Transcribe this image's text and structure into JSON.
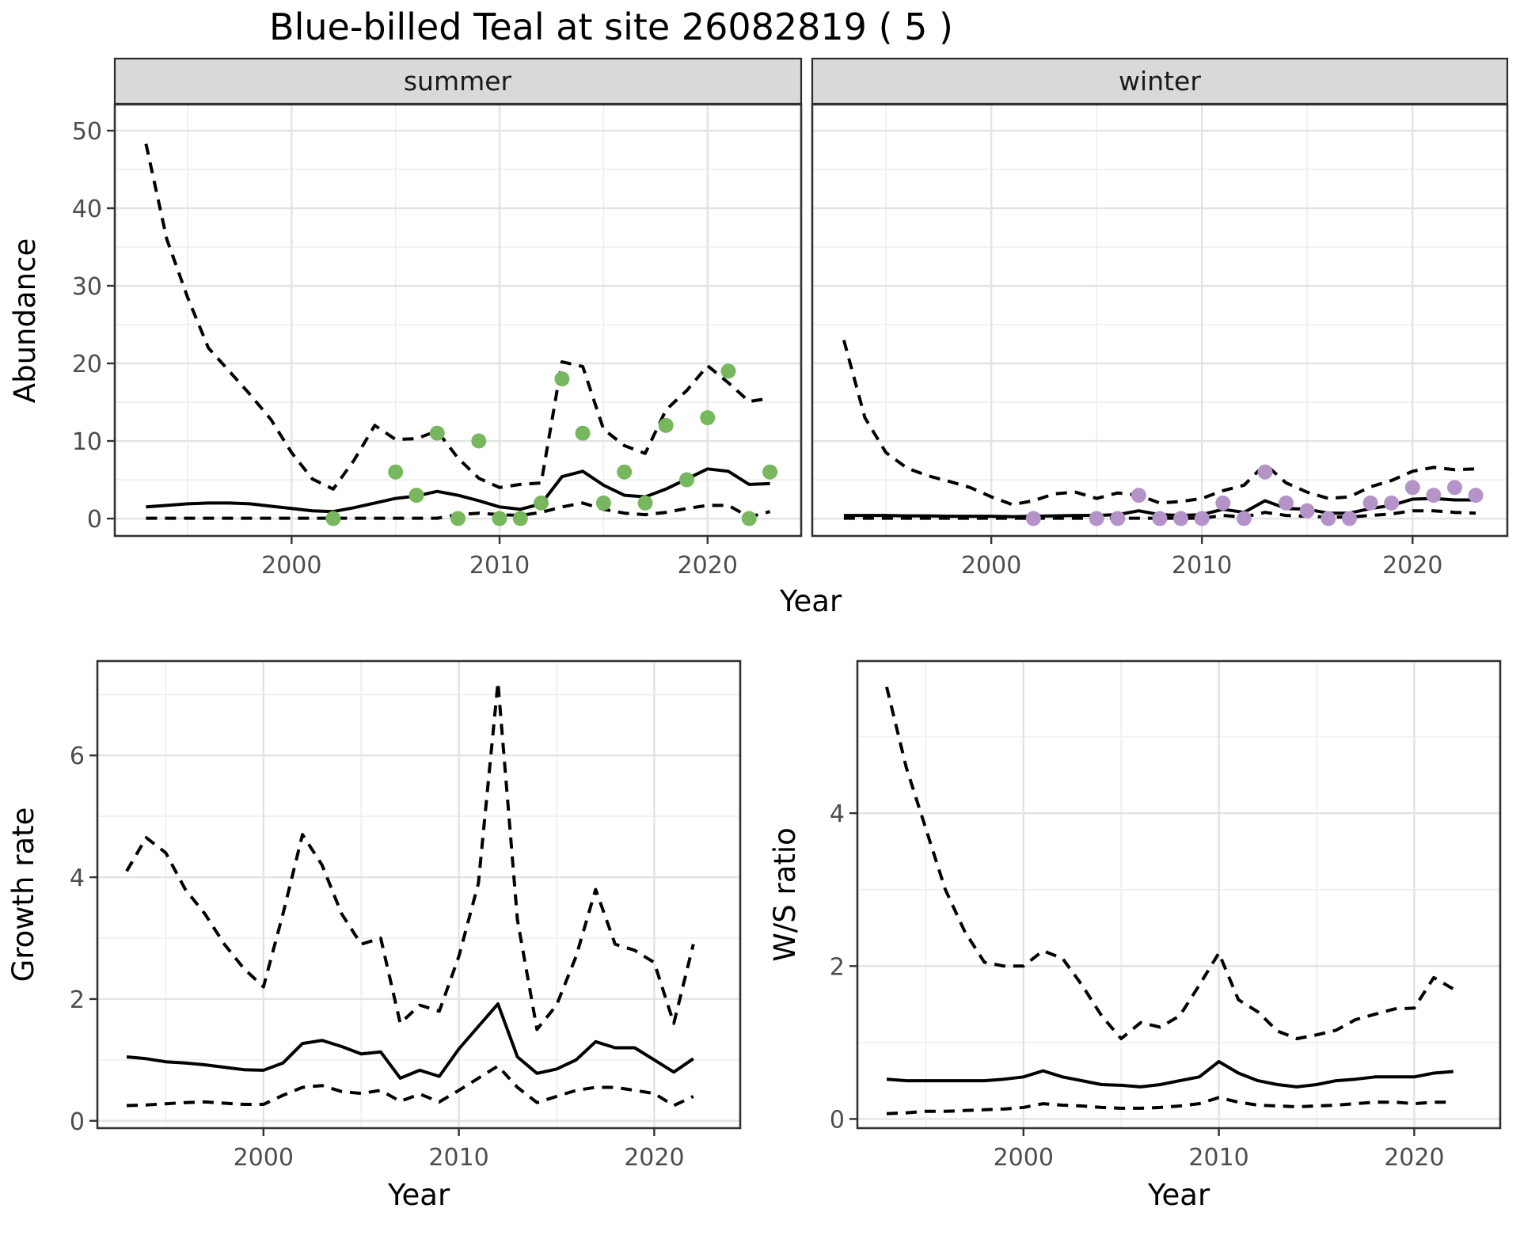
{
  "title": "Blue-billed Teal at site 26082819 ( 5 )",
  "labels": {
    "year": "Year",
    "abundance": "Abundance",
    "growth_rate": "Growth rate",
    "ws_ratio": "W/S ratio",
    "facet_summer": "summer",
    "facet_winter": "winter"
  },
  "colors": {
    "summer_point": "#77b75d",
    "winter_point": "#b493c8",
    "line": "#000000",
    "strip_bg": "#d9d9d9",
    "strip_border": "#2b2b2b",
    "panel_border": "#333333",
    "grid_major": "#e3e3e3",
    "grid_minor": "#f0f0f0",
    "tick_mark": "#333333"
  },
  "chart_data": [
    {
      "id": "summer",
      "type": "line",
      "facet_label": "summer",
      "ylabel": "Abundance",
      "xlabel": "Year",
      "xlim": [
        1991.5,
        2024.5
      ],
      "ylim": [
        -2.24,
        53.37
      ],
      "x_ticks": [
        2000,
        2010,
        2020
      ],
      "x_minor": [
        1995,
        2005,
        2015
      ],
      "y_ticks": [
        0,
        10,
        20,
        30,
        40,
        50
      ],
      "y_minor": [
        5,
        15,
        25,
        35,
        45
      ],
      "show_y_labels": true,
      "x": [
        1993,
        1994,
        1995,
        1996,
        1997,
        1998,
        1999,
        2000,
        2001,
        2002,
        2003,
        2004,
        2005,
        2006,
        2007,
        2008,
        2009,
        2010,
        2011,
        2012,
        2013,
        2014,
        2015,
        2016,
        2017,
        2018,
        2019,
        2020,
        2021,
        2022,
        2023
      ],
      "series": [
        {
          "name": "upper-ci",
          "style": "dashed",
          "values": [
            48.3,
            36,
            28.5,
            22,
            19,
            16,
            12.8,
            8.5,
            5.1,
            3.8,
            7.5,
            12,
            10.2,
            10.3,
            11.3,
            7.8,
            5.2,
            4.0,
            4.4,
            4.6,
            20.2,
            19.6,
            11.5,
            9.4,
            8.4,
            14,
            16.5,
            19.7,
            17.5,
            15.1,
            15.5
          ]
        },
        {
          "name": "median",
          "style": "solid",
          "values": [
            1.5,
            1.7,
            1.9,
            2.0,
            2.0,
            1.9,
            1.6,
            1.3,
            1.0,
            0.9,
            1.4,
            2.0,
            2.6,
            2.9,
            3.5,
            3.0,
            2.3,
            1.5,
            1.2,
            1.9,
            5.4,
            6.1,
            4.3,
            3.0,
            2.8,
            3.8,
            5.1,
            6.4,
            6.1,
            4.4,
            4.5
          ]
        },
        {
          "name": "lower-ci",
          "style": "dashed",
          "values": [
            0.05,
            0.05,
            0.05,
            0.05,
            0.05,
            0.05,
            0.05,
            0.05,
            0.05,
            0.05,
            0.05,
            0.05,
            0.05,
            0.05,
            0.05,
            0.5,
            0.7,
            0.5,
            0.4,
            0.8,
            1.5,
            2.0,
            1.2,
            0.7,
            0.5,
            0.8,
            1.3,
            1.7,
            1.7,
            0.2,
            0.9
          ]
        }
      ],
      "points": {
        "name": "observed-summer",
        "color_key": "summer_point",
        "x": [
          2002,
          2005,
          2006,
          2007,
          2008,
          2009,
          2010,
          2011,
          2012,
          2013,
          2014,
          2015,
          2016,
          2017,
          2018,
          2019,
          2020,
          2021,
          2022,
          2023
        ],
        "y": [
          0,
          6,
          3,
          11,
          0,
          10,
          0,
          0,
          2,
          18,
          11,
          2,
          6,
          2,
          12,
          5,
          13,
          19,
          0,
          6
        ]
      }
    },
    {
      "id": "winter",
      "type": "line",
      "facet_label": "winter",
      "ylabel": "Abundance",
      "xlabel": "Year",
      "xlim": [
        1991.5,
        2024.5
      ],
      "ylim": [
        -2.24,
        53.37
      ],
      "x_ticks": [
        2000,
        2010,
        2020
      ],
      "x_minor": [
        1995,
        2005,
        2015
      ],
      "y_ticks": [
        0,
        10,
        20,
        30,
        40,
        50
      ],
      "y_minor": [
        5,
        15,
        25,
        35,
        45
      ],
      "show_y_labels": false,
      "x": [
        1993,
        1994,
        1995,
        1996,
        1997,
        1998,
        1999,
        2000,
        2001,
        2002,
        2003,
        2004,
        2005,
        2006,
        2007,
        2008,
        2009,
        2010,
        2011,
        2012,
        2013,
        2014,
        2015,
        2016,
        2017,
        2018,
        2019,
        2020,
        2021,
        2022,
        2023
      ],
      "series": [
        {
          "name": "upper-ci",
          "style": "dashed",
          "values": [
            23,
            13,
            8.5,
            6.5,
            5.5,
            4.8,
            4.0,
            2.8,
            1.8,
            2.3,
            3.2,
            3.4,
            2.6,
            3.3,
            3.0,
            2.0,
            2.2,
            2.6,
            3.6,
            4.3,
            7.0,
            4.6,
            3.4,
            2.6,
            2.8,
            4.1,
            4.9,
            6.1,
            6.6,
            6.3,
            6.4
          ]
        },
        {
          "name": "median",
          "style": "solid",
          "values": [
            0.4,
            0.4,
            0.4,
            0.35,
            0.35,
            0.3,
            0.3,
            0.3,
            0.25,
            0.3,
            0.35,
            0.4,
            0.4,
            0.5,
            1.0,
            0.5,
            0.4,
            0.5,
            1.2,
            0.8,
            2.3,
            1.3,
            1.2,
            0.7,
            0.7,
            1.3,
            1.7,
            2.5,
            2.6,
            2.4,
            2.4
          ]
        },
        {
          "name": "lower-ci",
          "style": "dashed",
          "values": [
            0.05,
            0.05,
            0.05,
            0.05,
            0.05,
            0.05,
            0.05,
            0.05,
            0.05,
            0.05,
            0.05,
            0.05,
            0.05,
            0.05,
            0.05,
            0.05,
            0.05,
            0.05,
            0.4,
            0.2,
            0.8,
            0.4,
            0.3,
            0.2,
            0.2,
            0.4,
            0.6,
            1.0,
            1.0,
            0.8,
            0.7
          ]
        }
      ],
      "points": {
        "name": "observed-winter",
        "color_key": "winter_point",
        "x": [
          2002,
          2005,
          2006,
          2007,
          2008,
          2009,
          2010,
          2011,
          2012,
          2013,
          2014,
          2015,
          2016,
          2017,
          2018,
          2019,
          2020,
          2021,
          2022,
          2023
        ],
        "y": [
          0,
          0,
          0,
          3,
          0,
          0,
          0,
          2,
          0,
          6,
          2,
          1,
          0,
          0,
          2,
          2,
          4,
          3,
          4,
          3
        ]
      }
    },
    {
      "id": "growth",
      "type": "line",
      "facet_label": "",
      "ylabel": "Growth rate",
      "xlabel": "Year",
      "xlim": [
        1991.5,
        2024.4
      ],
      "ylim": [
        -0.12,
        7.55
      ],
      "x_ticks": [
        2000,
        2010,
        2020
      ],
      "x_minor": [
        1995,
        2005,
        2015
      ],
      "y_ticks": [
        0,
        2,
        4,
        6
      ],
      "y_minor": [
        1,
        3,
        5,
        7
      ],
      "show_y_labels": true,
      "x": [
        1993,
        1994,
        1995,
        1996,
        1997,
        1998,
        1999,
        2000,
        2001,
        2002,
        2003,
        2004,
        2005,
        2006,
        2007,
        2008,
        2009,
        2010,
        2011,
        2012,
        2013,
        2014,
        2015,
        2016,
        2017,
        2018,
        2019,
        2020,
        2021,
        2022
      ],
      "series": [
        {
          "name": "upper-ci",
          "style": "dashed",
          "values": [
            4.1,
            4.65,
            4.4,
            3.8,
            3.4,
            2.9,
            2.5,
            2.2,
            3.4,
            4.7,
            4.2,
            3.4,
            2.9,
            3.0,
            1.6,
            1.9,
            1.8,
            2.7,
            3.9,
            7.2,
            3.3,
            1.5,
            1.9,
            2.7,
            3.8,
            2.9,
            2.8,
            2.6,
            1.6,
            2.9
          ]
        },
        {
          "name": "median",
          "style": "solid",
          "values": [
            1.05,
            1.02,
            0.97,
            0.95,
            0.92,
            0.88,
            0.84,
            0.83,
            0.95,
            1.27,
            1.32,
            1.22,
            1.1,
            1.13,
            0.7,
            0.83,
            0.73,
            1.18,
            1.55,
            1.92,
            1.05,
            0.78,
            0.85,
            1.0,
            1.3,
            1.2,
            1.2,
            1.0,
            0.8,
            1.02
          ]
        },
        {
          "name": "lower-ci",
          "style": "dashed",
          "values": [
            0.25,
            0.26,
            0.28,
            0.3,
            0.31,
            0.29,
            0.27,
            0.27,
            0.42,
            0.55,
            0.58,
            0.48,
            0.45,
            0.5,
            0.32,
            0.44,
            0.31,
            0.5,
            0.7,
            0.9,
            0.55,
            0.3,
            0.4,
            0.5,
            0.55,
            0.55,
            0.5,
            0.45,
            0.25,
            0.4
          ]
        }
      ],
      "points": null
    },
    {
      "id": "ws",
      "type": "line",
      "facet_label": "",
      "ylabel": "W/S ratio",
      "xlabel": "Year",
      "xlim": [
        1991.5,
        2024.4
      ],
      "ylim": [
        -0.12,
        5.99
      ],
      "x_ticks": [
        2000,
        2010,
        2020
      ],
      "x_minor": [
        1995,
        2005,
        2015
      ],
      "y_ticks": [
        0,
        2,
        4
      ],
      "y_minor": [
        1,
        3,
        5
      ],
      "show_y_labels": true,
      "x": [
        1993,
        1994,
        1995,
        1996,
        1997,
        1998,
        1999,
        2000,
        2001,
        2002,
        2003,
        2004,
        2005,
        2006,
        2007,
        2008,
        2009,
        2010,
        2011,
        2012,
        2013,
        2014,
        2015,
        2016,
        2017,
        2018,
        2019,
        2020,
        2021,
        2022
      ],
      "series": [
        {
          "name": "upper-ci",
          "style": "dashed",
          "values": [
            5.65,
            4.6,
            3.8,
            3.0,
            2.45,
            2.05,
            2.0,
            2.0,
            2.2,
            2.1,
            1.75,
            1.35,
            1.05,
            1.26,
            1.2,
            1.35,
            1.75,
            2.17,
            1.56,
            1.4,
            1.15,
            1.05,
            1.1,
            1.16,
            1.3,
            1.37,
            1.44,
            1.45,
            1.85,
            1.7
          ]
        },
        {
          "name": "median",
          "style": "solid",
          "values": [
            0.52,
            0.5,
            0.5,
            0.5,
            0.5,
            0.5,
            0.52,
            0.55,
            0.63,
            0.55,
            0.5,
            0.45,
            0.44,
            0.42,
            0.45,
            0.5,
            0.55,
            0.75,
            0.6,
            0.5,
            0.45,
            0.42,
            0.45,
            0.5,
            0.52,
            0.55,
            0.55,
            0.55,
            0.6,
            0.62
          ]
        },
        {
          "name": "lower-ci",
          "style": "dashed",
          "values": [
            0.07,
            0.08,
            0.1,
            0.1,
            0.11,
            0.12,
            0.13,
            0.15,
            0.2,
            0.18,
            0.17,
            0.15,
            0.14,
            0.14,
            0.15,
            0.17,
            0.2,
            0.28,
            0.22,
            0.18,
            0.17,
            0.16,
            0.17,
            0.18,
            0.2,
            0.22,
            0.22,
            0.2,
            0.22,
            0.22
          ]
        }
      ],
      "points": null
    }
  ]
}
